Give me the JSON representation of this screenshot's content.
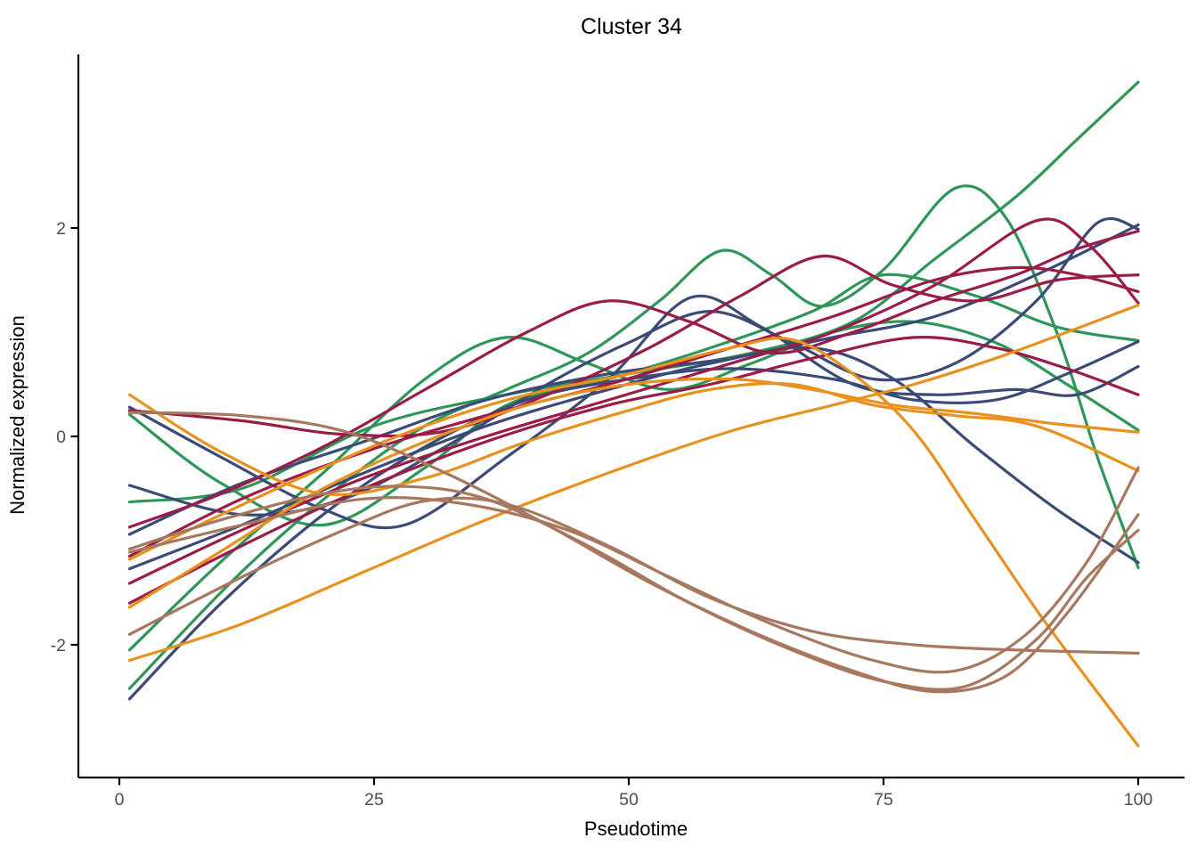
{
  "chart_data": {
    "type": "line",
    "title": "Cluster 34",
    "xlabel": "Pseudotime",
    "ylabel": "Normalized expression",
    "x_ticks": [
      0,
      25,
      50,
      75,
      100
    ],
    "x_tick_labels": [
      "0",
      "25",
      "50",
      "75",
      "100"
    ],
    "y_ticks": [
      2,
      0,
      -2
    ],
    "y_tick_labels": [
      "2",
      "0",
      "-2"
    ],
    "xlim": [
      -4,
      104.5
    ],
    "ylim": [
      -3.27,
      3.68
    ],
    "grid": false,
    "legend": false,
    "background_color": "#ffffff",
    "axis_color": "#000000",
    "tick_label_color": "#4d4d4d",
    "palette": {
      "green": "#2d9658",
      "navy": "#3b4a77",
      "maroon": "#9b1c47",
      "orange": "#e8911f",
      "brown": "#a7785f"
    },
    "series": [
      {
        "name": "green-1",
        "color_group": "green",
        "color": "#2d9658",
        "points": [
          [
            1,
            0.21
          ],
          [
            10,
            -0.45
          ],
          [
            20,
            -0.85
          ],
          [
            30,
            -0.3
          ],
          [
            38,
            0.3
          ],
          [
            48,
            0.55
          ],
          [
            58,
            0.85
          ],
          [
            68,
            1.2
          ],
          [
            75,
            1.55
          ],
          [
            84,
            1.35
          ],
          [
            92,
            1.05
          ],
          [
            100,
            0.92
          ]
        ]
      },
      {
        "name": "green-2",
        "color_group": "green",
        "color": "#2d9658",
        "points": [
          [
            1,
            -2.42
          ],
          [
            12,
            -1.3
          ],
          [
            22,
            -0.45
          ],
          [
            30,
            0.1
          ],
          [
            38,
            0.45
          ],
          [
            46,
            0.8
          ],
          [
            53,
            1.3
          ],
          [
            59,
            1.78
          ],
          [
            64,
            1.55
          ],
          [
            69,
            1.25
          ],
          [
            75,
            1.6
          ],
          [
            82,
            2.38
          ],
          [
            87,
            2.1
          ],
          [
            92,
            1.0
          ],
          [
            96,
            -0.2
          ],
          [
            100,
            -1.26
          ]
        ]
      },
      {
        "name": "green-3",
        "color_group": "green",
        "color": "#2d9658",
        "points": [
          [
            1,
            -2.05
          ],
          [
            10,
            -1.2
          ],
          [
            20,
            -0.35
          ],
          [
            30,
            0.55
          ],
          [
            38,
            0.95
          ],
          [
            46,
            0.7
          ],
          [
            54,
            0.45
          ],
          [
            62,
            0.7
          ],
          [
            70,
            1.0
          ],
          [
            78,
            1.1
          ],
          [
            86,
            0.9
          ],
          [
            93,
            0.5
          ],
          [
            100,
            0.06
          ]
        ]
      },
      {
        "name": "green-4",
        "color_group": "green",
        "color": "#2d9658",
        "points": [
          [
            1,
            -0.63
          ],
          [
            12,
            -0.5
          ],
          [
            25,
            0.1
          ],
          [
            38,
            0.4
          ],
          [
            50,
            0.6
          ],
          [
            62,
            0.8
          ],
          [
            72,
            1.1
          ],
          [
            80,
            1.7
          ],
          [
            88,
            2.3
          ],
          [
            94,
            2.85
          ],
          [
            100,
            3.4
          ]
        ]
      },
      {
        "name": "navy-1",
        "color_group": "navy",
        "color": "#3b4a77",
        "points": [
          [
            1,
            0.28
          ],
          [
            10,
            -0.2
          ],
          [
            20,
            -0.7
          ],
          [
            28,
            -0.85
          ],
          [
            38,
            -0.2
          ],
          [
            48,
            0.55
          ],
          [
            56,
            1.33
          ],
          [
            63,
            1.05
          ],
          [
            72,
            0.5
          ],
          [
            80,
            0.4
          ],
          [
            88,
            0.45
          ],
          [
            94,
            0.4
          ],
          [
            100,
            0.67
          ]
        ]
      },
      {
        "name": "navy-2",
        "color_group": "navy",
        "color": "#3b4a77",
        "points": [
          [
            1,
            -0.47
          ],
          [
            12,
            -0.75
          ],
          [
            22,
            -0.6
          ],
          [
            32,
            -0.1
          ],
          [
            42,
            0.5
          ],
          [
            50,
            0.9
          ],
          [
            58,
            1.2
          ],
          [
            66,
            0.9
          ],
          [
            74,
            0.55
          ],
          [
            82,
            0.7
          ],
          [
            90,
            1.3
          ],
          [
            96,
            2.05
          ],
          [
            100,
            1.99
          ]
        ]
      },
      {
        "name": "navy-3",
        "color_group": "navy",
        "color": "#3b4a77",
        "points": [
          [
            1,
            -0.94
          ],
          [
            12,
            -0.45
          ],
          [
            24,
            -0.05
          ],
          [
            36,
            0.35
          ],
          [
            48,
            0.6
          ],
          [
            60,
            0.75
          ],
          [
            70,
            0.95
          ],
          [
            80,
            1.15
          ],
          [
            90,
            1.55
          ],
          [
            100,
            2.03
          ]
        ]
      },
      {
        "name": "navy-4",
        "color_group": "navy",
        "color": "#3b4a77",
        "points": [
          [
            1,
            -1.27
          ],
          [
            12,
            -0.85
          ],
          [
            24,
            -0.35
          ],
          [
            36,
            0.1
          ],
          [
            48,
            0.45
          ],
          [
            58,
            0.7
          ],
          [
            68,
            0.85
          ],
          [
            76,
            0.55
          ],
          [
            84,
            -0.1
          ],
          [
            92,
            -0.7
          ],
          [
            100,
            -1.21
          ]
        ]
      },
      {
        "name": "navy-5",
        "color_group": "navy",
        "color": "#3b4a77",
        "points": [
          [
            1,
            -2.52
          ],
          [
            10,
            -1.6
          ],
          [
            20,
            -0.75
          ],
          [
            30,
            -0.1
          ],
          [
            40,
            0.35
          ],
          [
            50,
            0.55
          ],
          [
            60,
            0.65
          ],
          [
            70,
            0.55
          ],
          [
            78,
            0.35
          ],
          [
            86,
            0.35
          ],
          [
            93,
            0.6
          ],
          [
            100,
            0.91
          ]
        ]
      },
      {
        "name": "maroon-1",
        "color_group": "maroon",
        "color": "#9b1c47",
        "points": [
          [
            1,
            0.25
          ],
          [
            12,
            0.15
          ],
          [
            22,
            0.02
          ],
          [
            32,
            0.05
          ],
          [
            42,
            0.4
          ],
          [
            52,
            0.85
          ],
          [
            61,
            1.35
          ],
          [
            69,
            1.73
          ],
          [
            76,
            1.45
          ],
          [
            84,
            1.3
          ],
          [
            92,
            1.5
          ],
          [
            100,
            1.55
          ]
        ]
      },
      {
        "name": "maroon-2",
        "color_group": "maroon",
        "color": "#9b1c47",
        "points": [
          [
            1,
            -0.87
          ],
          [
            10,
            -0.55
          ],
          [
            20,
            -0.1
          ],
          [
            30,
            0.45
          ],
          [
            40,
            1.0
          ],
          [
            48,
            1.3
          ],
          [
            56,
            1.1
          ],
          [
            64,
            0.8
          ],
          [
            72,
            1.0
          ],
          [
            80,
            1.3
          ],
          [
            88,
            1.55
          ],
          [
            94,
            1.8
          ],
          [
            100,
            1.97
          ]
        ]
      },
      {
        "name": "maroon-3",
        "color_group": "maroon",
        "color": "#9b1c47",
        "points": [
          [
            1,
            -1.15
          ],
          [
            12,
            -0.6
          ],
          [
            24,
            -0.15
          ],
          [
            36,
            0.2
          ],
          [
            48,
            0.5
          ],
          [
            60,
            0.85
          ],
          [
            70,
            1.15
          ],
          [
            80,
            1.5
          ],
          [
            88,
            1.62
          ],
          [
            94,
            1.55
          ],
          [
            100,
            1.39
          ]
        ]
      },
      {
        "name": "maroon-4",
        "color_group": "maroon",
        "color": "#9b1c47",
        "points": [
          [
            1,
            -1.41
          ],
          [
            12,
            -0.9
          ],
          [
            24,
            -0.4
          ],
          [
            36,
            0.0
          ],
          [
            48,
            0.35
          ],
          [
            60,
            0.7
          ],
          [
            70,
            1.0
          ],
          [
            80,
            1.45
          ],
          [
            90,
            2.07
          ],
          [
            95,
            1.85
          ],
          [
            100,
            1.28
          ]
        ]
      },
      {
        "name": "maroon-5",
        "color_group": "maroon",
        "color": "#9b1c47",
        "points": [
          [
            1,
            -1.6
          ],
          [
            12,
            -1.05
          ],
          [
            24,
            -0.5
          ],
          [
            36,
            -0.05
          ],
          [
            48,
            0.3
          ],
          [
            58,
            0.5
          ],
          [
            68,
            0.75
          ],
          [
            78,
            0.95
          ],
          [
            86,
            0.85
          ],
          [
            93,
            0.65
          ],
          [
            100,
            0.4
          ]
        ]
      },
      {
        "name": "orange-1",
        "color_group": "orange",
        "color": "#e8911f",
        "points": [
          [
            1,
            0.4
          ],
          [
            10,
            -0.15
          ],
          [
            20,
            -0.55
          ],
          [
            30,
            -0.4
          ],
          [
            40,
            -0.05
          ],
          [
            50,
            0.25
          ],
          [
            58,
            0.45
          ],
          [
            66,
            0.5
          ],
          [
            74,
            0.3
          ],
          [
            82,
            0.2
          ],
          [
            90,
            0.1
          ],
          [
            100,
            -0.33
          ]
        ]
      },
      {
        "name": "orange-2",
        "color_group": "orange",
        "color": "#e8911f",
        "points": [
          [
            1,
            -1.18
          ],
          [
            10,
            -0.75
          ],
          [
            20,
            -0.3
          ],
          [
            30,
            0.1
          ],
          [
            40,
            0.4
          ],
          [
            50,
            0.6
          ],
          [
            60,
            0.85
          ],
          [
            66,
            0.93
          ],
          [
            72,
            0.6
          ],
          [
            78,
            0.05
          ],
          [
            84,
            -0.8
          ],
          [
            91,
            -1.8
          ],
          [
            100,
            -2.97
          ]
        ]
      },
      {
        "name": "orange-3",
        "color_group": "orange",
        "color": "#e8911f",
        "points": [
          [
            1,
            -1.64
          ],
          [
            10,
            -1.1
          ],
          [
            20,
            -0.5
          ],
          [
            30,
            -0.05
          ],
          [
            40,
            0.3
          ],
          [
            50,
            0.5
          ],
          [
            60,
            0.55
          ],
          [
            68,
            0.45
          ],
          [
            76,
            0.3
          ],
          [
            84,
            0.22
          ],
          [
            92,
            0.12
          ],
          [
            100,
            0.04
          ]
        ]
      },
      {
        "name": "orange-4",
        "color_group": "orange",
        "color": "#e8911f",
        "points": [
          [
            1,
            -2.15
          ],
          [
            12,
            -1.8
          ],
          [
            24,
            -1.3
          ],
          [
            36,
            -0.8
          ],
          [
            48,
            -0.35
          ],
          [
            60,
            0.05
          ],
          [
            70,
            0.3
          ],
          [
            78,
            0.5
          ],
          [
            86,
            0.75
          ],
          [
            93,
            1.0
          ],
          [
            100,
            1.26
          ]
        ]
      },
      {
        "name": "brown-1",
        "color_group": "brown",
        "color": "#a7785f",
        "points": [
          [
            1,
            0.23
          ],
          [
            12,
            0.2
          ],
          [
            22,
            0.05
          ],
          [
            32,
            -0.35
          ],
          [
            42,
            -0.85
          ],
          [
            52,
            -1.4
          ],
          [
            62,
            -1.87
          ],
          [
            72,
            -2.25
          ],
          [
            80,
            -2.45
          ],
          [
            87,
            -2.3
          ],
          [
            93,
            -1.7
          ],
          [
            100,
            -0.75
          ]
        ]
      },
      {
        "name": "brown-2",
        "color_group": "brown",
        "color": "#a7785f",
        "points": [
          [
            1,
            -1.08
          ],
          [
            10,
            -0.8
          ],
          [
            20,
            -0.55
          ],
          [
            28,
            -0.48
          ],
          [
            36,
            -0.6
          ],
          [
            46,
            -1.05
          ],
          [
            56,
            -1.6
          ],
          [
            66,
            -2.05
          ],
          [
            75,
            -2.35
          ],
          [
            83,
            -2.4
          ],
          [
            90,
            -1.95
          ],
          [
            95,
            -1.35
          ],
          [
            100,
            -0.9
          ]
        ]
      },
      {
        "name": "brown-3",
        "color_group": "brown",
        "color": "#a7785f",
        "points": [
          [
            1,
            -1.11
          ],
          [
            12,
            -0.85
          ],
          [
            24,
            -0.6
          ],
          [
            34,
            -0.65
          ],
          [
            44,
            -0.9
          ],
          [
            54,
            -1.35
          ],
          [
            64,
            -1.8
          ],
          [
            74,
            -2.15
          ],
          [
            82,
            -2.25
          ],
          [
            89,
            -1.9
          ],
          [
            95,
            -1.2
          ],
          [
            100,
            -0.3
          ]
        ]
      },
      {
        "name": "brown-4",
        "color_group": "brown",
        "color": "#a7785f",
        "points": [
          [
            1,
            -1.9
          ],
          [
            12,
            -1.35
          ],
          [
            22,
            -0.9
          ],
          [
            30,
            -0.62
          ],
          [
            38,
            -0.65
          ],
          [
            48,
            -1.05
          ],
          [
            58,
            -1.55
          ],
          [
            68,
            -1.87
          ],
          [
            78,
            -2.0
          ],
          [
            88,
            -2.05
          ],
          [
            100,
            -2.08
          ]
        ]
      }
    ]
  }
}
